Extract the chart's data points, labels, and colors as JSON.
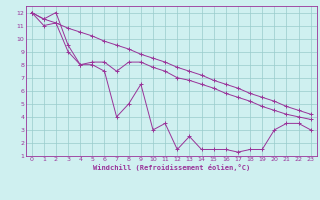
{
  "xlabel": "Windchill (Refroidissement éolien,°C)",
  "bg_color": "#cff0f0",
  "line_color": "#993399",
  "grid_color": "#99cccc",
  "xlim": [
    -0.5,
    23.5
  ],
  "ylim": [
    1,
    12.5
  ],
  "xticks": [
    0,
    1,
    2,
    3,
    4,
    5,
    6,
    7,
    8,
    9,
    10,
    11,
    12,
    13,
    14,
    15,
    16,
    17,
    18,
    19,
    20,
    21,
    22,
    23
  ],
  "yticks": [
    1,
    2,
    3,
    4,
    5,
    6,
    7,
    8,
    9,
    10,
    11,
    12
  ],
  "line1_x": [
    0,
    1,
    2,
    3,
    4,
    5,
    6,
    7,
    8,
    9,
    10,
    11,
    12,
    13,
    14,
    15,
    16,
    17,
    18,
    19,
    20,
    21,
    22,
    23
  ],
  "line1_y": [
    12,
    11.5,
    12,
    9.5,
    8,
    8,
    7.5,
    4,
    5,
    6.5,
    3,
    3.5,
    1.5,
    2.5,
    1.5,
    1.5,
    1.5,
    1.3,
    1.5,
    1.5,
    3,
    3.5,
    3.5,
    3
  ],
  "line2_x": [
    0,
    1,
    2,
    3,
    4,
    5,
    6,
    7,
    8,
    9,
    10,
    11,
    12,
    13,
    14,
    15,
    16,
    17,
    18,
    19,
    20,
    21,
    22,
    23
  ],
  "line2_y": [
    12,
    11,
    11.2,
    9,
    8,
    8.2,
    8.2,
    7.5,
    8.2,
    8.2,
    7.8,
    7.5,
    7,
    6.8,
    6.5,
    6.2,
    5.8,
    5.5,
    5.2,
    4.8,
    4.5,
    4.2,
    4,
    3.8
  ],
  "line3_x": [
    0,
    1,
    2,
    3,
    4,
    5,
    6,
    7,
    8,
    9,
    10,
    11,
    12,
    13,
    14,
    15,
    16,
    17,
    18,
    19,
    20,
    21,
    22,
    23
  ],
  "line3_y": [
    12,
    11.5,
    11.2,
    10.8,
    10.5,
    10.2,
    9.8,
    9.5,
    9.2,
    8.8,
    8.5,
    8.2,
    7.8,
    7.5,
    7.2,
    6.8,
    6.5,
    6.2,
    5.8,
    5.5,
    5.2,
    4.8,
    4.5,
    4.2
  ]
}
